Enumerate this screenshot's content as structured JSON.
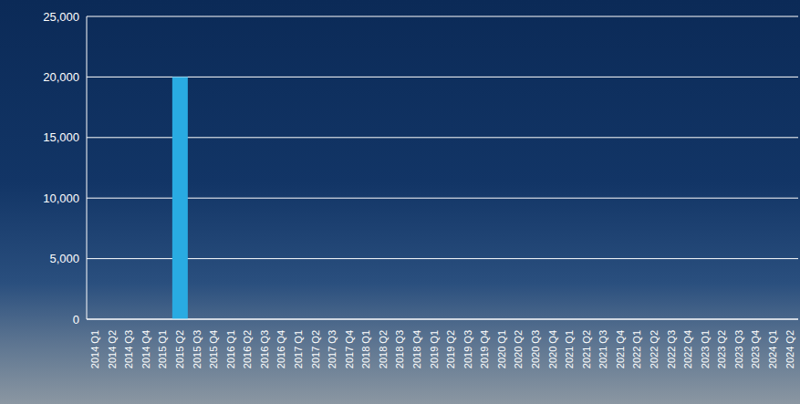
{
  "chart_data": {
    "type": "bar",
    "categories": [
      "2014 Q1",
      "2014 Q2",
      "2014 Q3",
      "2014 Q4",
      "2015 Q1",
      "2015 Q2",
      "2015 Q3",
      "2015 Q4",
      "2016 Q1",
      "2016 Q2",
      "2016 Q3",
      "2016 Q4",
      "2017 Q1",
      "2017 Q2",
      "2017 Q3",
      "2017 Q4",
      "2018 Q1",
      "2018 Q2",
      "2018 Q3",
      "2018 Q4",
      "2019 Q1",
      "2019 Q2",
      "2019 Q3",
      "2019 Q4",
      "2020 Q1",
      "2020 Q2",
      "2020 Q3",
      "2020 Q4",
      "2021 Q1",
      "2021 Q2",
      "2021 Q3",
      "2021 Q4",
      "2022 Q1",
      "2022 Q2",
      "2022 Q3",
      "2022 Q4",
      "2023 Q1",
      "2023 Q2",
      "2023 Q3",
      "2023 Q4",
      "2024 Q1",
      "2024 Q2"
    ],
    "values": [
      0,
      0,
      0,
      0,
      0,
      20000,
      0,
      0,
      0,
      0,
      0,
      0,
      0,
      0,
      0,
      0,
      0,
      0,
      0,
      0,
      0,
      0,
      0,
      0,
      0,
      0,
      0,
      0,
      0,
      0,
      0,
      0,
      0,
      0,
      0,
      0,
      0,
      0,
      0,
      0,
      0,
      0
    ],
    "color": "#29abe2",
    "ylim": [
      0,
      25000
    ],
    "yticks": [
      0,
      {
        "value": 5000,
        "label": "5,000"
      },
      {
        "value": 10000,
        "label": "10,000"
      },
      {
        "value": 15000,
        "label": "15,000"
      },
      {
        "value": 20000,
        "label": "20,000"
      },
      {
        "value": 25000,
        "label": "25,000"
      }
    ],
    "grid": true
  }
}
